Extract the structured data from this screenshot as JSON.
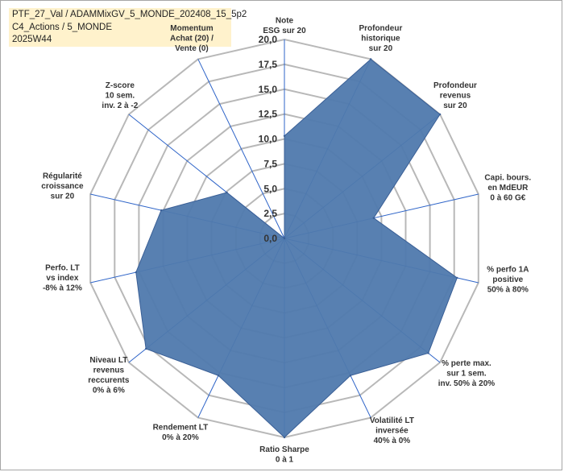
{
  "header": {
    "line1": "PTF_27_Val / ADAMMixGV_5_MONDE_202408_15_5p2",
    "line2": "C4_Actions / 5_MONDE",
    "line3": "2025W44"
  },
  "colors": {
    "fill": "#4f79ad",
    "stroke": "#3a5f96",
    "spoke": "#2e64c8",
    "grid": "#b8b8b8",
    "title_bg": "#fff2cc"
  },
  "chart_data": {
    "type": "radar",
    "rmin": 0,
    "rmax": 20,
    "ticks": [
      "0,0",
      "2,5",
      "5,0",
      "7,5",
      "10,0",
      "12,5",
      "15,0",
      "17,5",
      "20,0"
    ],
    "grid": true,
    "categories": [
      {
        "lines": [
          "Note",
          "ESG sur 20"
        ],
        "value": 10.3
      },
      {
        "lines": [
          "Profondeur",
          "historique",
          "sur 20"
        ],
        "value": 20
      },
      {
        "lines": [
          "Profondeur",
          "revenus",
          "sur 20"
        ],
        "value": 20
      },
      {
        "lines": [
          "Capi. bours.",
          "en MdEUR",
          "0 à 60 G€"
        ],
        "value": 9.2
      },
      {
        "lines": [
          "% perfo 1A",
          "positive",
          "50% à 80%"
        ],
        "value": 17.8
      },
      {
        "lines": [
          "% perte max.",
          "sur 1 sem.",
          "inv. 50% à 20%"
        ],
        "value": 18.5
      },
      {
        "lines": [
          "Volatilité LT",
          "inversée",
          "40% à 0%"
        ],
        "value": 15.3
      },
      {
        "lines": [
          "Ratio Sharpe",
          "0 à 1"
        ],
        "value": 20
      },
      {
        "lines": [
          "Rendement LT",
          "0% à 20%"
        ],
        "value": 15.3
      },
      {
        "lines": [
          "Niveau LT",
          "revenus",
          "reccurents",
          "0% à 6%"
        ],
        "value": 17.8
      },
      {
        "lines": [
          "Perfo. LT",
          "vs index",
          "-8% à 12%"
        ],
        "value": 15.3
      },
      {
        "lines": [
          "Régularité",
          "croissance",
          "sur 20"
        ],
        "value": 12.7
      },
      {
        "lines": [
          "Z-score",
          "10 sem.",
          "inv. 2 à -2"
        ],
        "value": 7.4
      },
      {
        "lines": [
          "Momentum",
          "Achat (20) /",
          "Vente (0)"
        ],
        "value": 0
      }
    ]
  }
}
